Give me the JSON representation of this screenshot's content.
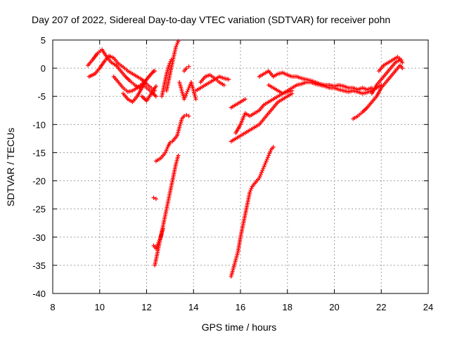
{
  "chart_data": {
    "type": "scatter",
    "title": "Day 207 of 2022, Sidereal Day-to-day VTEC variation (SDTVAR) for receiver pohn",
    "xlabel": "GPS time / hours",
    "ylabel": "SDTVAR / TECUs",
    "xlim": [
      8,
      24
    ],
    "ylim": [
      -40,
      5
    ],
    "xticks": [
      "8",
      "10",
      "12",
      "14",
      "16",
      "18",
      "20",
      "22",
      "24"
    ],
    "yticks": [
      "5",
      "0",
      "-5",
      "-10",
      "-15",
      "-20",
      "-25",
      "-30",
      "-35",
      "-40"
    ],
    "grid": true,
    "marker": "+",
    "color": "#ff0000",
    "series": [
      {
        "x": [
          9.55,
          9.8,
          10.0,
          10.2,
          10.4,
          10.6,
          10.8,
          11.0,
          11.2,
          11.4,
          11.6,
          11.8,
          12.0,
          12.2,
          12.35
        ],
        "y": [
          -1.5,
          -1.0,
          0.0,
          1.2,
          2.2,
          1.8,
          0.8,
          0.2,
          -0.5,
          -1.0,
          -1.5,
          -2.0,
          -2.8,
          -3.5,
          -4.0
        ]
      },
      {
        "x": [
          9.5,
          9.7,
          9.9,
          10.1,
          10.3,
          10.5,
          10.7,
          10.9,
          11.1,
          11.3,
          11.5,
          11.7,
          11.9,
          12.1,
          12.3
        ],
        "y": [
          0.5,
          1.5,
          2.6,
          3.3,
          2.0,
          1.0,
          0.5,
          -0.5,
          -1.5,
          -2.3,
          -3.0,
          -3.5,
          -2.5,
          -1.5,
          -0.5
        ]
      },
      {
        "x": [
          10.6,
          10.8,
          11.0,
          11.2,
          11.4,
          11.6,
          11.8,
          12.0,
          12.2,
          12.4
        ],
        "y": [
          -1.5,
          -2.5,
          -3.5,
          -4.2,
          -4.0,
          -3.5,
          -2.8,
          -3.5,
          -4.2,
          -5.0
        ]
      },
      {
        "x": [
          11.8,
          12.0,
          12.2,
          12.4
        ],
        "y": [
          -5.0,
          -5.8,
          -4.5,
          -3.2
        ]
      },
      {
        "x": [
          11.0,
          11.2,
          11.4,
          11.6,
          11.8,
          12.0,
          12.2,
          12.35
        ],
        "y": [
          -4.5,
          -5.5,
          -6.0,
          -5.0,
          -3.5,
          -2.0,
          -1.0,
          -0.5
        ]
      },
      {
        "x": [
          12.85,
          12.95,
          13.05,
          13.15,
          13.25,
          13.35
        ],
        "y": [
          -4.0,
          -2.0,
          0.0,
          2.0,
          3.8,
          4.8
        ]
      },
      {
        "x": [
          12.65,
          12.75,
          12.85,
          12.95,
          13.05
        ],
        "y": [
          -5.0,
          -3.0,
          -1.0,
          0.5,
          1.5
        ]
      },
      {
        "x": [
          13.4,
          13.5,
          13.6,
          13.7,
          13.8,
          13.9,
          14.0,
          14.1
        ],
        "y": [
          -2.5,
          -4.0,
          -5.5,
          -4.5,
          -3.5,
          -2.5,
          -4.0,
          -5.5
        ]
      },
      {
        "x": [
          14.1,
          14.3,
          14.5,
          14.7,
          14.9,
          15.1,
          15.3,
          15.5
        ],
        "y": [
          -4.0,
          -3.5,
          -3.0,
          -2.5,
          -2.0,
          -1.5,
          -1.8,
          -2.0
        ]
      },
      {
        "x": [
          14.3,
          14.5,
          14.7,
          14.9,
          15.1,
          15.3
        ],
        "y": [
          -2.5,
          -1.5,
          -1.2,
          -1.8,
          -2.5,
          -3.0
        ]
      },
      {
        "x": [
          13.6,
          13.7,
          13.8
        ],
        "y": [
          -0.5,
          0.0,
          0.3
        ]
      },
      {
        "x": [
          12.4,
          12.6,
          12.8,
          12.9,
          13.0,
          13.1,
          13.2,
          13.3,
          13.4,
          13.5,
          13.6,
          13.7,
          13.8
        ],
        "y": [
          -16.5,
          -16.0,
          -15.0,
          -14.0,
          -13.2,
          -13.0,
          -12.5,
          -12.0,
          -10.5,
          -9.0,
          -8.5,
          -8.3,
          -8.5
        ]
      },
      {
        "x": [
          12.35,
          12.45,
          12.55,
          12.65,
          12.75,
          12.85,
          12.95,
          13.05,
          13.15,
          13.25,
          13.35
        ],
        "y": [
          -35.0,
          -33.0,
          -31.0,
          -29.0,
          -27.0,
          -25.0,
          -23.0,
          -21.0,
          -19.0,
          -17.0,
          -15.5
        ]
      },
      {
        "x": [
          12.3,
          12.4,
          12.5,
          12.6,
          12.7
        ],
        "y": [
          -31.5,
          -32.0,
          -31.0,
          -30.0,
          -28.5
        ]
      },
      {
        "x": [
          12.3,
          12.4
        ],
        "y": [
          -23.0,
          -23.2
        ]
      },
      {
        "x": [
          15.6,
          15.7,
          15.8,
          15.9,
          16.0,
          16.1,
          16.2,
          16.3,
          16.4,
          16.5,
          16.6,
          16.7,
          16.8,
          16.9,
          17.0,
          17.1,
          17.2,
          17.3,
          17.4
        ],
        "y": [
          -37.0,
          -35.5,
          -34.0,
          -32.5,
          -30.0,
          -28.0,
          -26.0,
          -24.0,
          -22.0,
          -21.0,
          -20.5,
          -20.0,
          -19.5,
          -18.5,
          -17.5,
          -16.5,
          -15.5,
          -14.5,
          -14.0
        ]
      },
      {
        "x": [
          15.6,
          15.8,
          16.0,
          16.2,
          16.4,
          16.6,
          16.8,
          17.0,
          17.2,
          17.4,
          17.6,
          17.8,
          18.0,
          18.2
        ],
        "y": [
          -13.0,
          -12.5,
          -12.0,
          -11.5,
          -11.0,
          -10.5,
          -10.0,
          -9.0,
          -8.0,
          -7.0,
          -6.0,
          -5.5,
          -5.0,
          -4.5
        ]
      },
      {
        "x": [
          15.8,
          16.0,
          16.2,
          16.4,
          16.6,
          16.8,
          17.0,
          17.2,
          17.4,
          17.6,
          17.8,
          18.0,
          18.2
        ],
        "y": [
          -11.5,
          -10.0,
          -8.0,
          -8.5,
          -8.0,
          -7.5,
          -6.5,
          -6.0,
          -5.5,
          -5.0,
          -4.5,
          -4.2,
          -4.0
        ]
      },
      {
        "x": [
          15.6,
          15.8,
          16.0,
          16.2
        ],
        "y": [
          -7.0,
          -6.5,
          -6.0,
          -5.5
        ]
      },
      {
        "x": [
          16.8,
          17.0,
          17.2,
          17.4,
          17.6,
          17.8,
          18.0,
          18.2,
          18.4,
          18.6,
          18.8,
          19.0,
          19.2,
          19.4,
          19.6,
          19.8,
          20.0,
          20.2,
          20.4,
          20.6,
          20.8,
          21.0,
          21.2,
          21.4,
          21.6
        ],
        "y": [
          -1.5,
          -1.0,
          -0.5,
          -1.5,
          -1.0,
          -0.8,
          -1.2,
          -1.5,
          -1.5,
          -1.8,
          -2.0,
          -2.2,
          -2.5,
          -2.8,
          -3.0,
          -3.0,
          -3.2,
          -3.0,
          -3.2,
          -3.5,
          -3.5,
          -3.8,
          -3.5,
          -3.8,
          -3.5
        ]
      },
      {
        "x": [
          17.2,
          17.4,
          17.6,
          17.8,
          18.0,
          18.2,
          18.4,
          18.6,
          18.8,
          19.0,
          19.2,
          19.4,
          19.6,
          19.8,
          20.0,
          20.2,
          20.4,
          20.6,
          20.8,
          21.0,
          21.2,
          21.4,
          21.6,
          21.8,
          22.0
        ],
        "y": [
          -3.0,
          -3.5,
          -4.0,
          -4.5,
          -4.0,
          -3.5,
          -3.0,
          -2.8,
          -2.5,
          -2.5,
          -2.8,
          -3.0,
          -3.2,
          -3.5,
          -3.5,
          -3.8,
          -4.0,
          -4.2,
          -4.0,
          -4.2,
          -4.5,
          -4.3,
          -4.0,
          -3.5,
          -3.0
        ]
      },
      {
        "x": [
          20.8,
          21.0,
          21.2,
          21.4,
          21.6,
          21.8,
          22.0,
          22.2,
          22.4,
          22.6,
          22.8,
          22.9
        ],
        "y": [
          -9.0,
          -8.5,
          -7.8,
          -7.0,
          -6.0,
          -5.0,
          -3.5,
          -2.5,
          -1.5,
          -0.5,
          0.5,
          0.0
        ]
      },
      {
        "x": [
          21.6,
          21.8,
          22.0,
          22.2,
          22.4,
          22.6,
          22.8,
          22.9
        ],
        "y": [
          -4.5,
          -3.0,
          -2.0,
          -1.0,
          0.0,
          1.0,
          1.5,
          1.0
        ]
      },
      {
        "x": [
          21.9,
          22.1,
          22.3,
          22.5,
          22.7,
          22.85
        ],
        "y": [
          -0.5,
          0.5,
          1.0,
          1.5,
          2.0,
          1.5
        ]
      }
    ]
  }
}
